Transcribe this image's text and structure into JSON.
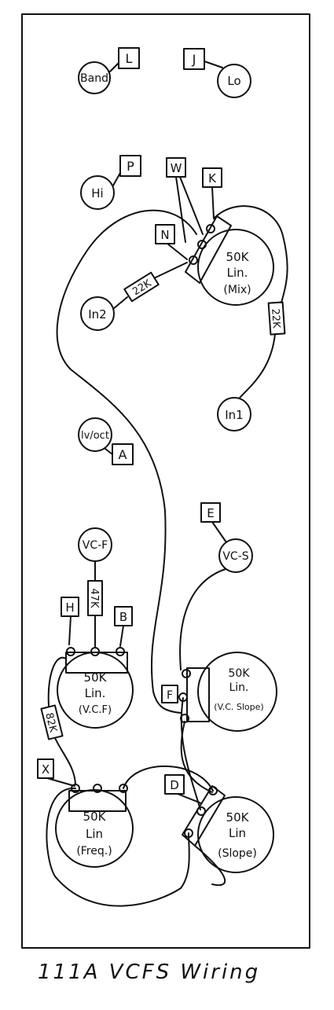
{
  "caption": "111A VCFS Wiring",
  "jacks": {
    "band": "Band",
    "lo": "Lo",
    "hi": "Hi",
    "in2": "In2",
    "in1": "In1",
    "lvoct": "lv/oct",
    "vcf": "VC-F",
    "vcs": "VC-S"
  },
  "tags": {
    "L": "L",
    "J": "J",
    "P": "P",
    "W": "W",
    "K": "K",
    "N": "N",
    "A": "A",
    "E": "E",
    "H": "H",
    "B": "B",
    "F": "F",
    "X": "X",
    "D": "D"
  },
  "resistors": {
    "r_in2": "22K",
    "r_in1": "22K",
    "r_vcf": "47K",
    "r_82": "82K"
  },
  "pots": {
    "mix": {
      "value": "50K",
      "taper": "Lin.",
      "name": "(Mix)"
    },
    "vcf": {
      "value": "50K",
      "taper": "Lin.",
      "name": "(V.C.F)"
    },
    "vcslope": {
      "value": "50K",
      "taper": "Lin.",
      "name": "(V.C. Slope)"
    },
    "freq": {
      "value": "50K",
      "taper": "Lin",
      "name": "(Freq.)"
    },
    "slope": {
      "value": "50K",
      "taper": "Lin",
      "name": "(Slope)"
    }
  }
}
